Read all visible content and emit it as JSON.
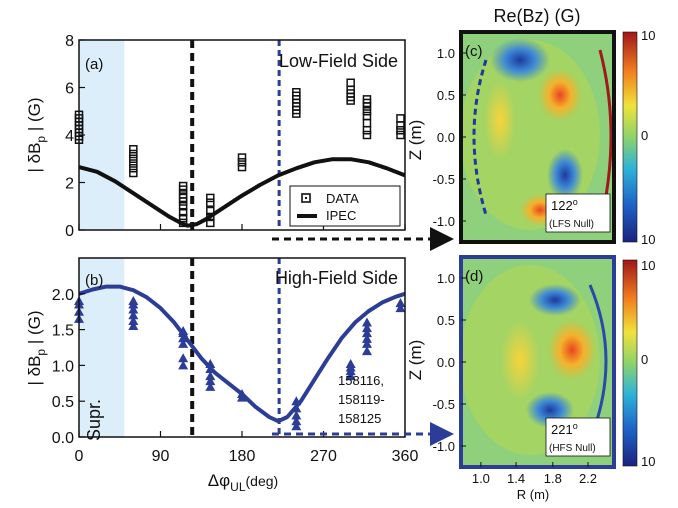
{
  "figure": {
    "top_title": "Re(Bz) (G)",
    "shot_label_lines": [
      "158116,",
      "158119-",
      "158125"
    ],
    "supr_label": "Supr."
  },
  "chart_data": [
    {
      "type": "scatter",
      "panel_label": "(a)",
      "side_label": "Low-Field Side",
      "ylabel": "| δB",
      "ylabel_sub": "p",
      "ylabel_end": " | (G)",
      "xlim": [
        0,
        360
      ],
      "ylim": [
        0,
        8
      ],
      "yticks": [
        0,
        2,
        4,
        6,
        8
      ],
      "xticks": [
        0,
        90,
        180,
        270,
        360
      ],
      "shaded_x": [
        0,
        50
      ],
      "vline_black_x": 125,
      "vline_blue_x": 221,
      "legend": {
        "data": "DATA",
        "model": "IPEC",
        "position": "bottom-right"
      },
      "colors": {
        "data": "#111111",
        "model": "#111111",
        "shade": "#dbeef9",
        "vline_black": "#111111",
        "vline_blue": "#2c3d97"
      },
      "series": [
        {
          "name": "DATA",
          "kind": "points",
          "x": [
            0,
            0,
            0,
            0,
            0,
            0,
            0,
            0,
            60,
            60,
            60,
            60,
            60,
            60,
            115,
            115,
            115,
            115,
            115,
            115,
            115,
            115,
            115,
            145,
            145,
            145,
            145,
            145,
            180,
            180,
            180,
            240,
            240,
            240,
            240,
            240,
            240,
            240,
            300,
            300,
            300,
            300,
            300,
            318,
            318,
            318,
            318,
            318,
            318,
            318,
            318,
            355,
            355,
            355,
            355
          ],
          "y": [
            3.8,
            3.95,
            4.1,
            4.25,
            4.4,
            4.55,
            4.7,
            4.85,
            2.4,
            2.6,
            2.8,
            3.0,
            3.2,
            3.4,
            0.5,
            0.75,
            1.0,
            1.2,
            1.35,
            1.5,
            1.7,
            1.85,
            0.3,
            0.3,
            0.55,
            0.8,
            1.15,
            1.35,
            2.65,
            2.85,
            3.05,
            4.9,
            5.05,
            5.2,
            5.35,
            5.5,
            5.65,
            5.8,
            5.45,
            5.6,
            5.75,
            5.9,
            6.2,
            4.0,
            4.2,
            4.5,
            4.8,
            5.0,
            5.2,
            5.35,
            5.5,
            4.0,
            4.2,
            4.4,
            4.7
          ]
        },
        {
          "name": "IPEC",
          "kind": "line",
          "x": [
            0,
            20,
            40,
            60,
            80,
            100,
            115,
            120,
            130,
            140,
            160,
            180,
            200,
            220,
            240,
            260,
            280,
            300,
            320,
            340,
            360
          ],
          "y": [
            2.65,
            2.45,
            2.05,
            1.55,
            1.05,
            0.55,
            0.25,
            0.18,
            0.25,
            0.45,
            0.95,
            1.45,
            1.9,
            2.3,
            2.6,
            2.85,
            2.98,
            2.98,
            2.85,
            2.6,
            2.3
          ]
        }
      ]
    },
    {
      "type": "scatter",
      "panel_label": "(b)",
      "side_label": "High-Field Side",
      "ylabel": "| δB",
      "ylabel_sub": "p",
      "ylabel_end": " | (G)",
      "xlabel": "Δφ",
      "xlabel_sub": "UL",
      "xlabel_end": "(deg)",
      "xlim": [
        0,
        360
      ],
      "ylim": [
        0,
        2.5
      ],
      "yticks": [
        "0.0",
        "0.5",
        "1.0",
        "1.5",
        "2.0"
      ],
      "xticks": [
        0,
        90,
        180,
        270,
        360
      ],
      "shaded_x": [
        0,
        50
      ],
      "vline_black_x": 125,
      "vline_blue_x": 221,
      "colors": {
        "data": "#2c3d97",
        "model": "#2c3d97",
        "shade": "#dbeef9"
      },
      "series": [
        {
          "name": "DATA",
          "kind": "points",
          "x": [
            0,
            0,
            0,
            0,
            60,
            60,
            60,
            60,
            60,
            60,
            115,
            115,
            115,
            115,
            115,
            115,
            145,
            145,
            145,
            145,
            145,
            180,
            180,
            240,
            240,
            240,
            240,
            240,
            300,
            300,
            300,
            300,
            318,
            318,
            318,
            318,
            318,
            318,
            355,
            355
          ],
          "y": [
            1.65,
            1.75,
            1.85,
            1.9,
            1.55,
            1.62,
            1.7,
            1.78,
            1.85,
            1.9,
            1.0,
            1.1,
            1.3,
            1.38,
            1.45,
            1.48,
            0.7,
            0.78,
            0.85,
            0.95,
            1.02,
            0.55,
            0.6,
            0.15,
            0.22,
            0.3,
            0.4,
            0.5,
            0.85,
            0.92,
            0.97,
            1.02,
            1.2,
            1.3,
            1.37,
            1.45,
            1.52,
            1.6,
            1.8,
            1.87
          ]
        },
        {
          "name": "IPEC",
          "kind": "line",
          "x": [
            0,
            15,
            30,
            45,
            60,
            75,
            90,
            105,
            120,
            135,
            150,
            165,
            180,
            195,
            210,
            220,
            230,
            245,
            260,
            275,
            290,
            305,
            320,
            335,
            350,
            360
          ],
          "y": [
            2.0,
            2.06,
            2.1,
            2.1,
            2.05,
            1.95,
            1.8,
            1.6,
            1.35,
            1.1,
            0.9,
            0.75,
            0.6,
            0.42,
            0.28,
            0.22,
            0.28,
            0.5,
            0.8,
            1.1,
            1.38,
            1.6,
            1.76,
            1.88,
            1.96,
            2.0
          ]
        }
      ]
    }
  ],
  "maps": {
    "c": {
      "panel_label": "(c)",
      "angle": "122",
      "note": "(LFS Null)",
      "ylabel": "Z (m)",
      "yticks": [
        "1.0",
        "0.5",
        "0.0",
        "-0.5",
        "-1.0"
      ],
      "frame_color": "#111111"
    },
    "d": {
      "panel_label": "(d)",
      "angle": "221",
      "note": "(HFS Null)",
      "ylabel": "Z (m)",
      "yticks": [
        "1.0",
        "0.5",
        "0.0",
        "-0.5",
        "-1.0"
      ],
      "xlabel": "R (m)",
      "xticks": [
        "1.0",
        "1.4",
        "1.8",
        "2.2"
      ],
      "frame_color": "#2c3d97"
    },
    "colorbar_ticks": [
      "10",
      "0",
      "10"
    ]
  }
}
